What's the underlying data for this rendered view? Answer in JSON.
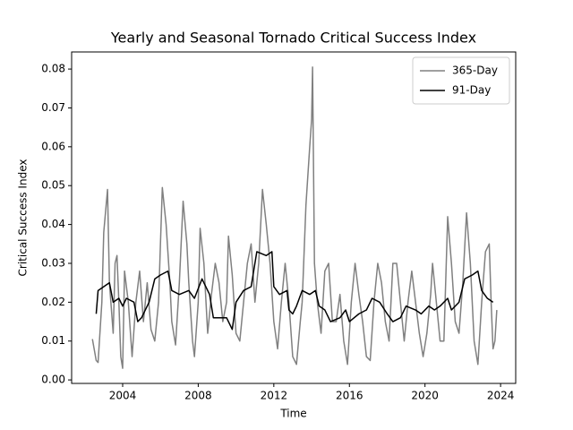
{
  "chart_data": {
    "type": "line",
    "title": "Yearly and Seasonal Tornado Critical Success Index",
    "xlabel": "Time",
    "ylabel": "Critical Success Index",
    "xlim": [
      2001.3,
      2024.8
    ],
    "xticks": [
      2004,
      2008,
      2012,
      2016,
      2020,
      2024
    ],
    "ylim": [
      -0.0009,
      0.0844
    ],
    "yticks": [
      {
        "value": 0,
        "label": "0.00"
      },
      0.01,
      0.02,
      0.03,
      0.04,
      0.05,
      0.06,
      0.07,
      0.08
    ],
    "legend": "upper right",
    "grid": false,
    "series": [
      {
        "name": "365-Day",
        "color": "#808080",
        "x": [
          2002.4,
          2002.6,
          2002.7,
          2002.9,
          2003.0,
          2003.2,
          2003.3,
          2003.5,
          2003.6,
          2003.7,
          2003.8,
          2003.9,
          2004.0,
          2004.1,
          2004.3,
          2004.5,
          2004.7,
          2004.9,
          2005.1,
          2005.3,
          2005.5,
          2005.7,
          2005.9,
          2006.0,
          2006.1,
          2006.3,
          2006.5,
          2006.6,
          2006.8,
          2007.0,
          2007.2,
          2007.4,
          2007.5,
          2007.7,
          2007.8,
          2008.0,
          2008.1,
          2008.3,
          2008.5,
          2008.7,
          2008.9,
          2009.1,
          2009.3,
          2009.5,
          2009.6,
          2009.8,
          2010.0,
          2010.2,
          2010.4,
          2010.6,
          2010.8,
          2011.0,
          2011.2,
          2011.4,
          2011.6,
          2011.8,
          2012.0,
          2012.2,
          2012.4,
          2012.6,
          2012.8,
          2013.0,
          2013.2,
          2013.4,
          2013.5,
          2013.7,
          2013.9,
          2014.0,
          2014.05,
          2014.15,
          2014.3,
          2014.5,
          2014.7,
          2014.9,
          2015.1,
          2015.3,
          2015.5,
          2015.7,
          2015.9,
          2016.1,
          2016.3,
          2016.5,
          2016.7,
          2016.9,
          2017.1,
          2017.3,
          2017.5,
          2017.7,
          2017.9,
          2018.1,
          2018.3,
          2018.5,
          2018.7,
          2018.9,
          2019.1,
          2019.3,
          2019.5,
          2019.7,
          2019.9,
          2020.1,
          2020.3,
          2020.4,
          2020.6,
          2020.8,
          2021.0,
          2021.2,
          2021.4,
          2021.6,
          2021.8,
          2022.0,
          2022.2,
          2022.4,
          2022.6,
          2022.8,
          2023.0,
          2023.2,
          2023.4,
          2023.5,
          2023.6,
          2023.7,
          2023.8
        ],
        "values": [
          0.0105,
          0.005,
          0.0045,
          0.02,
          0.038,
          0.049,
          0.025,
          0.012,
          0.03,
          0.032,
          0.02,
          0.006,
          0.003,
          0.028,
          0.02,
          0.006,
          0.02,
          0.028,
          0.015,
          0.025,
          0.013,
          0.01,
          0.02,
          0.035,
          0.0495,
          0.04,
          0.025,
          0.015,
          0.009,
          0.025,
          0.046,
          0.035,
          0.025,
          0.01,
          0.006,
          0.02,
          0.039,
          0.03,
          0.012,
          0.022,
          0.03,
          0.025,
          0.015,
          0.02,
          0.037,
          0.027,
          0.012,
          0.01,
          0.02,
          0.03,
          0.035,
          0.02,
          0.03,
          0.049,
          0.04,
          0.03,
          0.015,
          0.008,
          0.02,
          0.03,
          0.02,
          0.006,
          0.004,
          0.015,
          0.02,
          0.045,
          0.06,
          0.067,
          0.0805,
          0.03,
          0.02,
          0.012,
          0.028,
          0.03,
          0.015,
          0.015,
          0.022,
          0.01,
          0.004,
          0.02,
          0.03,
          0.022,
          0.015,
          0.006,
          0.005,
          0.02,
          0.03,
          0.025,
          0.015,
          0.01,
          0.03,
          0.03,
          0.02,
          0.01,
          0.02,
          0.028,
          0.02,
          0.012,
          0.006,
          0.012,
          0.022,
          0.03,
          0.02,
          0.01,
          0.01,
          0.042,
          0.03,
          0.015,
          0.012,
          0.025,
          0.043,
          0.03,
          0.01,
          0.004,
          0.02,
          0.033,
          0.035,
          0.02,
          0.008,
          0.01,
          0.018
        ]
      },
      {
        "name": "91-Day",
        "color": "#000000",
        "x": [
          2002.6,
          2002.7,
          2003.0,
          2003.3,
          2003.5,
          2003.8,
          2004.0,
          2004.2,
          2004.6,
          2004.8,
          2005.0,
          2005.4,
          2005.7,
          2006.0,
          2006.4,
          2006.6,
          2007.0,
          2007.5,
          2007.8,
          2008.2,
          2008.6,
          2008.8,
          2009.5,
          2009.8,
          2010.0,
          2010.4,
          2010.8,
          2011.1,
          2011.6,
          2011.9,
          2012.0,
          2012.3,
          2012.7,
          2012.8,
          2013.0,
          2013.2,
          2013.5,
          2013.9,
          2014.2,
          2014.4,
          2014.7,
          2015.0,
          2015.5,
          2015.8,
          2016.0,
          2016.5,
          2016.9,
          2017.2,
          2017.6,
          2018.0,
          2018.3,
          2018.7,
          2019.0,
          2019.5,
          2019.8,
          2020.2,
          2020.5,
          2020.8,
          2021.2,
          2021.4,
          2021.8,
          2022.1,
          2022.5,
          2022.8,
          2023.0,
          2023.3,
          2023.6
        ],
        "values": [
          0.017,
          0.023,
          0.024,
          0.025,
          0.02,
          0.021,
          0.019,
          0.021,
          0.02,
          0.015,
          0.016,
          0.02,
          0.026,
          0.027,
          0.028,
          0.023,
          0.022,
          0.023,
          0.021,
          0.026,
          0.022,
          0.016,
          0.016,
          0.013,
          0.02,
          0.023,
          0.024,
          0.033,
          0.032,
          0.033,
          0.024,
          0.022,
          0.023,
          0.018,
          0.017,
          0.019,
          0.023,
          0.022,
          0.023,
          0.019,
          0.018,
          0.015,
          0.016,
          0.018,
          0.015,
          0.017,
          0.018,
          0.021,
          0.02,
          0.017,
          0.015,
          0.016,
          0.019,
          0.018,
          0.017,
          0.019,
          0.018,
          0.019,
          0.021,
          0.018,
          0.02,
          0.026,
          0.027,
          0.028,
          0.023,
          0.021,
          0.02
        ]
      }
    ]
  }
}
